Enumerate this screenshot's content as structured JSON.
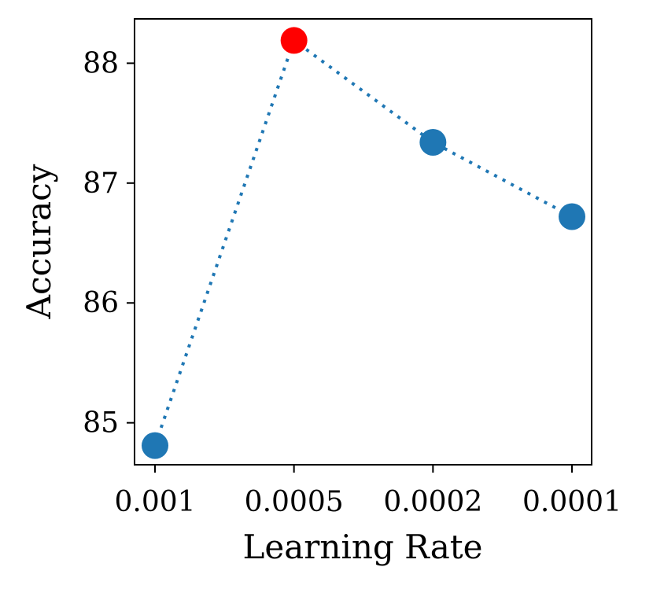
{
  "chart_data": {
    "type": "line",
    "x": [
      "0.001",
      "0.0005",
      "0.0002",
      "0.0001"
    ],
    "y": [
      84.81,
      88.19,
      87.34,
      86.72
    ],
    "highlight_index": 1,
    "xlabel": "Learning Rate",
    "ylabel": "Accuracy",
    "yticks": [
      85,
      86,
      87,
      88
    ],
    "ylim": [
      84.65,
      88.37
    ],
    "line_style": "dotted",
    "grid": false,
    "colors": {
      "line": "#1f77b4",
      "marker": "#1f77b4",
      "highlight": "#ff0000"
    }
  }
}
